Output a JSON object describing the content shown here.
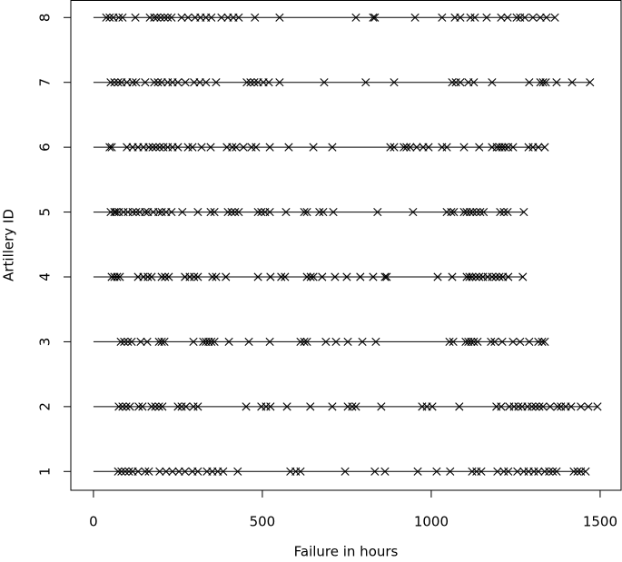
{
  "chart_data": {
    "type": "event",
    "xlabel": "Failure in hours",
    "ylabel": "Artillery ID",
    "xlim": [
      -67,
      1562
    ],
    "ylim": [
      0.71,
      8.27
    ],
    "xticks": [
      0,
      500,
      1000,
      1500
    ],
    "yticks": [
      1,
      2,
      3,
      4,
      5,
      6,
      7,
      8
    ],
    "color": "#000000",
    "rows": [
      {
        "y": 1,
        "x": [
          73,
          83,
          94,
          105,
          116,
          132,
          153,
          164,
          196,
          215,
          234,
          253,
          271,
          293,
          309,
          336,
          352,
          368,
          384,
          427,
          583,
          599,
          613,
          745,
          833,
          863,
          960,
          1016,
          1056,
          1121,
          1134,
          1148,
          1196,
          1215,
          1228,
          1255,
          1274,
          1288,
          1304,
          1317,
          1336,
          1349,
          1360,
          1371,
          1422,
          1433,
          1443,
          1457
        ]
      },
      {
        "y": 2,
        "x": [
          75,
          86,
          97,
          108,
          134,
          145,
          172,
          183,
          194,
          204,
          250,
          261,
          274,
          296,
          309,
          452,
          497,
          511,
          524,
          573,
          642,
          707,
          753,
          766,
          777,
          852,
          973,
          987,
          1003,
          1083,
          1193,
          1207,
          1231,
          1245,
          1258,
          1269,
          1285,
          1298,
          1309,
          1320,
          1331,
          1352,
          1374,
          1384,
          1398,
          1414,
          1443,
          1465,
          1492
        ]
      },
      {
        "y": 3,
        "x": [
          81,
          91,
          102,
          113,
          140,
          159,
          194,
          202,
          210,
          296,
          325,
          333,
          341,
          349,
          358,
          401,
          460,
          522,
          613,
          624,
          632,
          688,
          718,
          753,
          796,
          836,
          1054,
          1065,
          1102,
          1110,
          1118,
          1126,
          1137,
          1177,
          1188,
          1210,
          1242,
          1263,
          1290,
          1317,
          1328,
          1336
        ]
      },
      {
        "y": 4,
        "x": [
          54,
          62,
          70,
          78,
          132,
          148,
          161,
          172,
          202,
          212,
          223,
          271,
          285,
          298,
          309,
          352,
          363,
          392,
          487,
          524,
          556,
          567,
          632,
          643,
          651,
          677,
          715,
          750,
          790,
          828,
          863,
          868,
          1019,
          1062,
          1105,
          1113,
          1121,
          1132,
          1142,
          1153,
          1167,
          1180,
          1191,
          1202,
          1212,
          1228,
          1271
        ]
      },
      {
        "y": 5,
        "x": [
          51,
          62,
          67,
          75,
          89,
          102,
          116,
          126,
          137,
          153,
          161,
          177,
          193,
          202,
          215,
          231,
          263,
          309,
          347,
          358,
          398,
          409,
          419,
          430,
          487,
          497,
          508,
          522,
          570,
          624,
          632,
          669,
          680,
          710,
          841,
          946,
          1046,
          1059,
          1067,
          1097,
          1105,
          1115,
          1123,
          1134,
          1145,
          1155,
          1204,
          1215,
          1226,
          1274
        ]
      },
      {
        "y": 6,
        "x": [
          48,
          54,
          99,
          116,
          132,
          148,
          164,
          175,
          185,
          196,
          207,
          220,
          234,
          250,
          280,
          293,
          320,
          347,
          395,
          411,
          422,
          444,
          468,
          481,
          522,
          578,
          651,
          707,
          879,
          890,
          919,
          927,
          938,
          957,
          976,
          992,
          1032,
          1046,
          1097,
          1142,
          1180,
          1194,
          1202,
          1210,
          1218,
          1228,
          1242,
          1288,
          1301,
          1317,
          1336
        ]
      },
      {
        "y": 7,
        "x": [
          51,
          62,
          73,
          83,
          99,
          116,
          126,
          153,
          180,
          191,
          202,
          220,
          234,
          250,
          272,
          298,
          315,
          333,
          363,
          454,
          465,
          476,
          487,
          503,
          519,
          551,
          683,
          806,
          890,
          1062,
          1073,
          1086,
          1110,
          1126,
          1180,
          1290,
          1323,
          1331,
          1339,
          1371,
          1417,
          1470
        ]
      },
      {
        "y": 8,
        "x": [
          38,
          48,
          59,
          75,
          86,
          124,
          167,
          180,
          188,
          199,
          210,
          220,
          231,
          261,
          280,
          301,
          317,
          333,
          349,
          379,
          398,
          414,
          430,
          478,
          551,
          777,
          828,
          833,
          952,
          1032,
          1070,
          1086,
          1116,
          1129,
          1164,
          1207,
          1226,
          1253,
          1263,
          1277,
          1301,
          1323,
          1341,
          1366
        ]
      }
    ]
  }
}
